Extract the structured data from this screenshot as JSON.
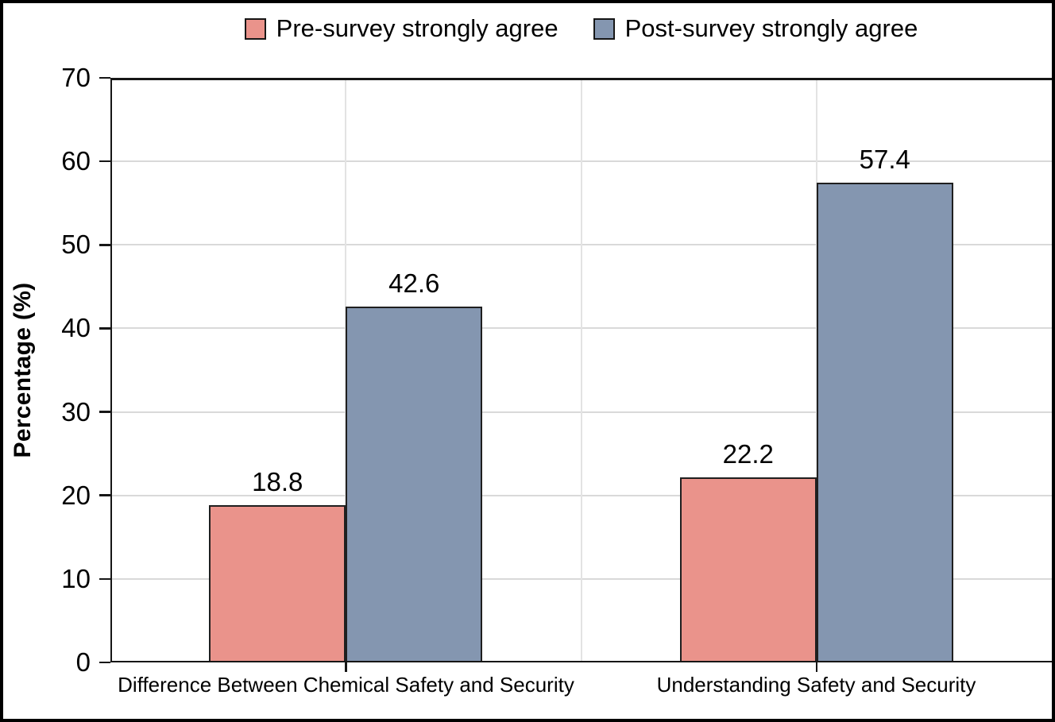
{
  "chart_data": {
    "type": "bar",
    "title": "",
    "categories": [
      "Difference Between Chemical Safety and Security",
      "Understanding Safety and Security"
    ],
    "series": [
      {
        "name": "Pre-survey strongly agree",
        "color": "#EA938B",
        "values": [
          18.8,
          22.2
        ]
      },
      {
        "name": "Post-survey strongly agree",
        "color": "#8496B0",
        "values": [
          42.6,
          57.4
        ]
      }
    ],
    "data_labels": [
      "18.8",
      "42.6",
      "22.2",
      "57.4"
    ],
    "ylabel": "Percentage (%)",
    "xlabel": "",
    "ylim": [
      0,
      70
    ],
    "yticks": [
      0,
      10,
      20,
      30,
      40,
      50,
      60,
      70
    ],
    "grid": "horizontal major + vertical category guides",
    "legend_position": "top-center",
    "colors": {
      "gridline": "#D9D9D9",
      "axis": "#161616",
      "bar_border": "#1F1F1F",
      "text": "#000000",
      "background": "#FFFFFF",
      "outer_border": "#000000"
    }
  }
}
